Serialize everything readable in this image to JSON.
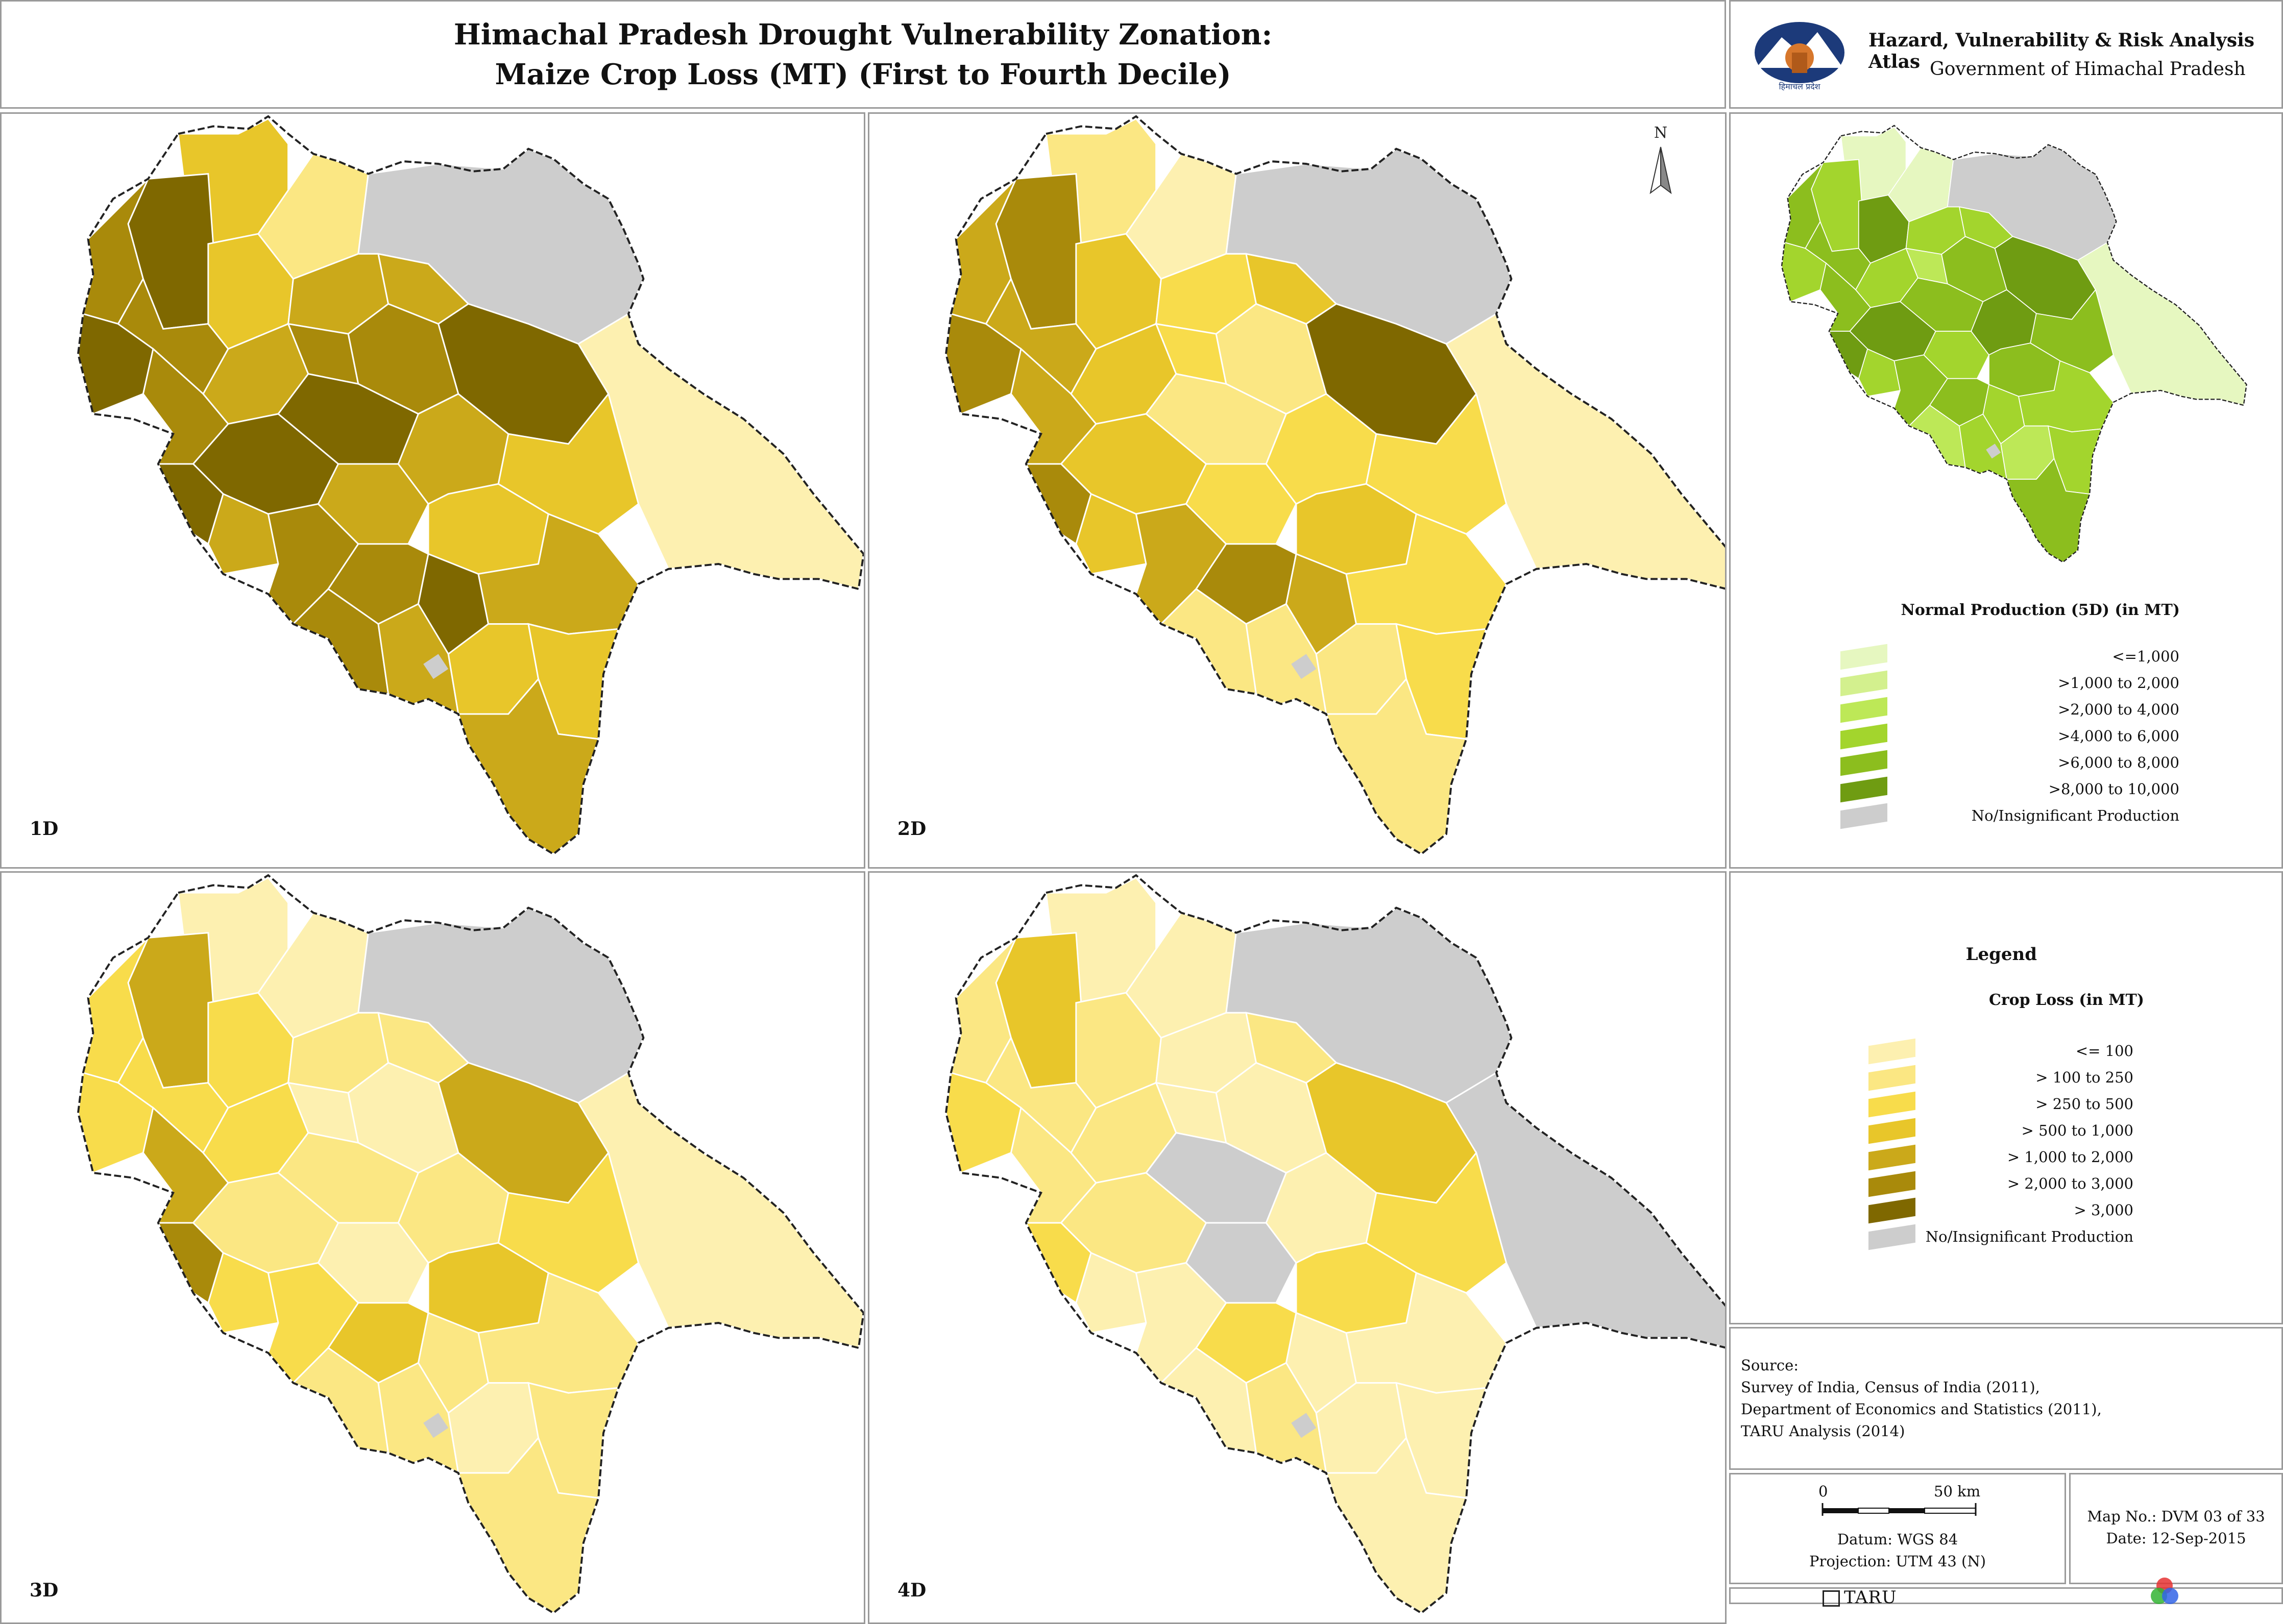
{
  "header": {
    "title_line1": "Himachal Pradesh Drought Vulnerability Zonation:",
    "title_line2": "Maize Crop Loss (MT) (First to Fourth Decile)"
  },
  "atlas": {
    "title": "Hazard, Vulnerability & Risk Analysis Atlas",
    "subtitle": "Government of Himachal Pradesh",
    "emblem_text": "हिमाचल प्रदेश"
  },
  "north_arrow": "N",
  "panels": [
    {
      "label": "1D"
    },
    {
      "label": "2D"
    },
    {
      "label": "3D"
    },
    {
      "label": "4D"
    }
  ],
  "colors": {
    "no_production": "#cdcdcd",
    "border": "#333333"
  },
  "normal_production_legend": {
    "title": "Normal Production (5D) (in MT)",
    "items": [
      {
        "label": "<=1,000",
        "color": "#e6f7c0"
      },
      {
        "label": ">1,000 to 2,000",
        "color": "#d3f08e"
      },
      {
        "label": ">2,000 to 4,000",
        "color": "#bde857"
      },
      {
        "label": ">4,000 to 6,000",
        "color": "#a3d52d"
      },
      {
        "label": ">6,000 to 8,000",
        "color": "#8cbe1e"
      },
      {
        "label": ">8,000 to 10,000",
        "color": "#6f9c12"
      },
      {
        "label": "No/Insignificant Production",
        "color": "#cdcdcd"
      }
    ]
  },
  "crop_loss_legend": {
    "heading": "Legend",
    "title": "Crop Loss (in MT)",
    "items": [
      {
        "label": "<= 100",
        "color": "#fdf0b0"
      },
      {
        "label": "> 100 to 250",
        "color": "#fbe783"
      },
      {
        "label": "> 250 to 500",
        "color": "#f8dc4b"
      },
      {
        "label": "> 500 to 1,000",
        "color": "#e8c62a"
      },
      {
        "label": "> 1,000 to 2,000",
        "color": "#cba91a"
      },
      {
        "label": "> 2,000 to 3,000",
        "color": "#a98a0b"
      },
      {
        "label": "> 3,000",
        "color": "#7f6800"
      },
      {
        "label": "No/Insignificant Production",
        "color": "#cdcdcd"
      }
    ]
  },
  "source": {
    "heading": "Source:",
    "lines": [
      "Survey of India, Census of India (2011),",
      "Department of Economics and Statistics (2011),",
      "TARU Analysis (2014)"
    ]
  },
  "scale": {
    "zero": "0",
    "max": "50 km",
    "datum": "Datum: WGS 84",
    "projection": "Projection: UTM 43 (N)"
  },
  "map_info": {
    "number": "Map No.: DVM 03 of 33",
    "date": "Date: 12-Sep-2015"
  },
  "footer": {
    "logo_text": "TARU"
  }
}
